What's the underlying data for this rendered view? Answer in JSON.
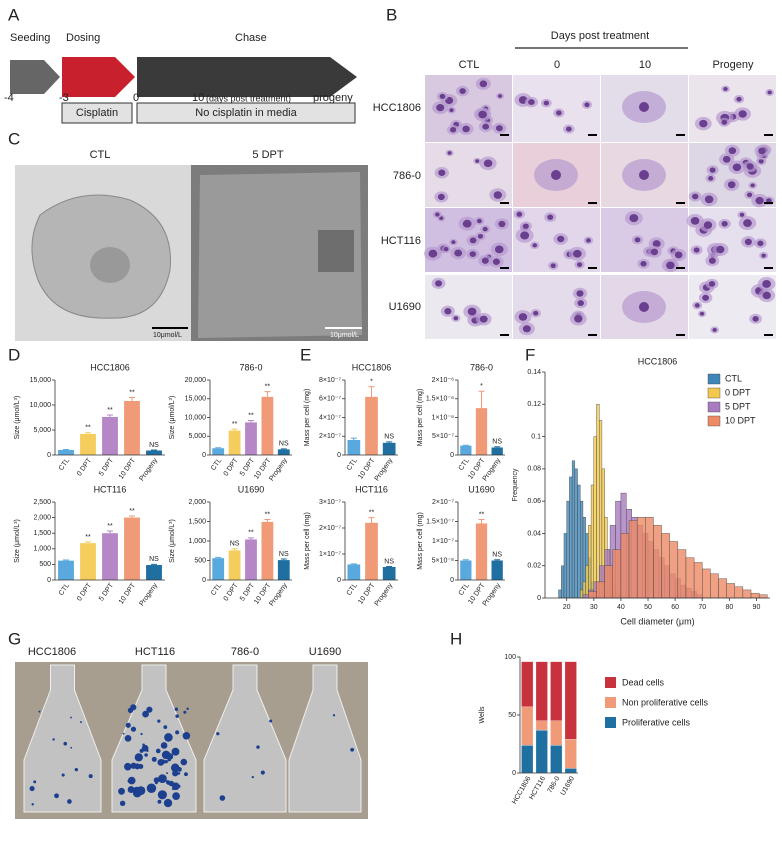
{
  "panels": [
    "A",
    "B",
    "C",
    "D",
    "E",
    "F",
    "G",
    "H"
  ],
  "timeline": {
    "phases": [
      "Seeding",
      "Dosing",
      "Chase"
    ],
    "days": [
      "-4",
      "-3",
      "0",
      "10",
      "progeny"
    ],
    "days_note": "(days post treatment)",
    "boxes": [
      "Cisplatin",
      "No cisplatin in media"
    ]
  },
  "micrographs": {
    "header": "Days post treatment",
    "columns": [
      "CTL",
      "0",
      "10",
      "Progeny"
    ],
    "rows": [
      "HCC1806",
      "786-0",
      "HCT116",
      "U1690"
    ]
  },
  "electron_microscopy": {
    "labels": [
      "CTL",
      "5 DPT"
    ],
    "scale_bar": "10μmol/L"
  },
  "flasks": {
    "labels": [
      "HCC1806",
      "HCT116",
      "786-0",
      "U1690"
    ]
  },
  "chart_data": [
    {
      "type": "bar",
      "title": "HCC1806",
      "ylabel": "Size (μmol/L³)",
      "categories": [
        "CTL",
        "0 DPT",
        "5 DPT",
        "10 DPT",
        "Progeny"
      ],
      "values": [
        1000,
        4200,
        7600,
        10800,
        900
      ],
      "errors": [
        100,
        250,
        400,
        700,
        100
      ],
      "annotations": [
        null,
        "**",
        "**",
        "**",
        "NS"
      ],
      "colors": [
        "#5aa9de",
        "#f5cd5e",
        "#b687c7",
        "#f09a78",
        "#1f6fa0"
      ],
      "ylim": [
        0,
        15000
      ],
      "yticks": [
        0,
        {
          "value": 5000,
          "label": "5,000"
        },
        {
          "value": 10000,
          "label": "10,000"
        },
        {
          "value": 15000,
          "label": "15,000"
        }
      ]
    },
    {
      "type": "bar",
      "title": "786-0",
      "ylabel": "Size (μmol/L³)",
      "categories": [
        "CTL",
        "0 DPT",
        "5 DPT",
        "10 DPT",
        "Progeny"
      ],
      "values": [
        1800,
        6500,
        8700,
        15500,
        1500
      ],
      "errors": [
        150,
        400,
        500,
        1400,
        150
      ],
      "annotations": [
        null,
        "**",
        "**",
        "**",
        "NS"
      ],
      "colors": [
        "#5aa9de",
        "#f5cd5e",
        "#b687c7",
        "#f09a78",
        "#1f6fa0"
      ],
      "ylim": [
        0,
        20000
      ],
      "yticks": [
        0,
        {
          "value": 5000,
          "label": "5,000"
        },
        {
          "value": 10000,
          "label": "10,000"
        },
        {
          "value": 15000,
          "label": "15,000"
        },
        {
          "value": 20000,
          "label": "20,000"
        }
      ]
    },
    {
      "type": "bar",
      "title": "HCT116",
      "ylabel": "Size (μmol/L³)",
      "categories": [
        "CTL",
        "0 DPT",
        "5 DPT",
        "10 DPT",
        "Progeny"
      ],
      "values": [
        620,
        1180,
        1500,
        2000,
        480
      ],
      "errors": [
        20,
        40,
        70,
        50,
        20
      ],
      "annotations": [
        null,
        "**",
        "**",
        "**",
        "NS"
      ],
      "colors": [
        "#5aa9de",
        "#f5cd5e",
        "#b687c7",
        "#f09a78",
        "#1f6fa0"
      ],
      "ylim": [
        0,
        2500
      ],
      "yticks": [
        0,
        500,
        {
          "value": 1000,
          "label": "1,000"
        },
        {
          "value": 1500,
          "label": "1,500"
        },
        {
          "value": 2000,
          "label": "2,000"
        },
        {
          "value": 2500,
          "label": "2,500"
        }
      ]
    },
    {
      "type": "bar",
      "title": "U1690",
      "ylabel": "Size (μmol/L³)",
      "categories": [
        "CTL",
        "0 DPT",
        "5 DPT",
        "10 DPT",
        "Progeny"
      ],
      "values": [
        560,
        760,
        1040,
        1490,
        510
      ],
      "errors": [
        20,
        40,
        40,
        60,
        30
      ],
      "annotations": [
        null,
        "NS",
        "**",
        "**",
        "NS"
      ],
      "colors": [
        "#5aa9de",
        "#f5cd5e",
        "#b687c7",
        "#f09a78",
        "#1f6fa0"
      ],
      "ylim": [
        0,
        2000
      ],
      "yticks": [
        0,
        500,
        {
          "value": 1000,
          "label": "1,000"
        },
        {
          "value": 1500,
          "label": "1,500"
        },
        {
          "value": 2000,
          "label": "2,000"
        }
      ]
    },
    {
      "type": "bar",
      "title": "HCC1806",
      "ylabel": "Mass per cell (mg)",
      "categories": [
        "CTL",
        "10 DPT",
        "Progeny"
      ],
      "values": [
        1.6e-07,
        6.2e-07,
        1.3e-07
      ],
      "errors": [
        2e-08,
        1.1e-07,
        1e-08
      ],
      "annotations": [
        null,
        "*",
        "NS"
      ],
      "colors": [
        "#5aa9de",
        "#f09a78",
        "#1f6fa0"
      ],
      "ylim": [
        0,
        8e-07
      ],
      "yticks": [
        0,
        {
          "value": 2e-07,
          "label": "2×10⁻⁷"
        },
        {
          "value": 4e-07,
          "label": "4×10⁻⁷"
        },
        {
          "value": 6e-07,
          "label": "6×10⁻⁷"
        },
        {
          "value": 8e-07,
          "label": "8×10⁻⁷"
        }
      ]
    },
    {
      "type": "bar",
      "title": "786-0",
      "ylabel": "Mass per cell (mg)",
      "categories": [
        "CTL",
        "10 DPT",
        "Progeny"
      ],
      "values": [
        2.5e-07,
        1.25e-06,
        2e-07
      ],
      "errors": [
        1e-08,
        4.5e-07,
        2e-08
      ],
      "annotations": [
        null,
        "*",
        "NS"
      ],
      "colors": [
        "#5aa9de",
        "#f09a78",
        "#1f6fa0"
      ],
      "ylim": [
        0,
        2e-06
      ],
      "yticks": [
        0,
        {
          "value": 5e-07,
          "label": "5×10⁻⁷"
        },
        {
          "value": 1e-06,
          "label": "1×10⁻⁶"
        },
        {
          "value": 1.5e-06,
          "label": "1.5×10⁻⁶"
        },
        {
          "value": 2e-06,
          "label": "2×10⁻⁶"
        }
      ]
    },
    {
      "type": "bar",
      "title": "HCT116",
      "ylabel": "Mass per cell (mg)",
      "categories": [
        "CTL",
        "10 DPT",
        "Progeny"
      ],
      "values": [
        6e-08,
        2.2e-07,
        5e-08
      ],
      "errors": [
        2e-09,
        2e-08,
        2e-09
      ],
      "annotations": [
        null,
        "**",
        "NS"
      ],
      "colors": [
        "#5aa9de",
        "#f09a78",
        "#1f6fa0"
      ],
      "ylim": [
        0,
        3e-07
      ],
      "yticks": [
        0,
        {
          "value": 1e-07,
          "label": "1×10⁻⁷"
        },
        {
          "value": 2e-07,
          "label": "2×10⁻⁷"
        },
        {
          "value": 3e-07,
          "label": "3×10⁻⁷"
        }
      ]
    },
    {
      "type": "bar",
      "title": "U1690",
      "ylabel": "Mass per cell (mg)",
      "categories": [
        "CTL",
        "10 DPT",
        "Progeny"
      ],
      "values": [
        5e-08,
        1.45e-07,
        5e-08
      ],
      "errors": [
        2e-09,
        1e-08,
        2e-09
      ],
      "annotations": [
        null,
        "**",
        "NS"
      ],
      "colors": [
        "#5aa9de",
        "#f09a78",
        "#1f6fa0"
      ],
      "ylim": [
        0,
        2e-07
      ],
      "yticks": [
        0,
        {
          "value": 5e-08,
          "label": "5×10⁻⁸"
        },
        {
          "value": 1e-07,
          "label": "1×10⁻⁷"
        },
        {
          "value": 1.5e-07,
          "label": "1.5×10⁻⁷"
        },
        {
          "value": 2e-07,
          "label": "2×10⁻⁷"
        }
      ]
    },
    {
      "type": "histogram",
      "title": "HCC1806",
      "xlabel": "Cell diameter (μm)",
      "ylabel": "Frequency",
      "xlim": [
        12,
        95
      ],
      "xticks": [
        20,
        30,
        40,
        50,
        60,
        70,
        80,
        90
      ],
      "ylim": [
        0,
        0.14
      ],
      "yticks": [
        0,
        0.02,
        0.04,
        0.06,
        0.08,
        0.1,
        0.12,
        0.14
      ],
      "legend": "upper right",
      "series": [
        {
          "name": "CTL",
          "color": "#3f86b8",
          "bins": [
            17,
            18,
            19,
            20,
            21,
            22,
            23,
            24,
            25,
            26,
            27,
            28,
            29,
            30,
            31
          ],
          "values": [
            0.005,
            0.02,
            0.04,
            0.06,
            0.075,
            0.085,
            0.08,
            0.07,
            0.06,
            0.05,
            0.04,
            0.025,
            0.01,
            0.004
          ]
        },
        {
          "name": "0 DPT",
          "color": "#f2c94c",
          "bins": [
            25,
            26,
            27,
            28,
            29,
            30,
            31,
            32,
            33,
            34,
            35,
            36,
            37,
            38,
            39,
            40
          ],
          "values": [
            0.005,
            0.01,
            0.02,
            0.045,
            0.07,
            0.1,
            0.12,
            0.11,
            0.08,
            0.05,
            0.03,
            0.015,
            0.008,
            0.004,
            0.002
          ]
        },
        {
          "name": "5 DPT",
          "color": "#a77bbf",
          "bins": [
            26,
            28,
            30,
            32,
            34,
            36,
            38,
            40,
            42,
            44,
            46,
            48,
            50,
            52,
            54,
            56,
            58,
            60,
            62,
            64,
            66,
            68,
            70
          ],
          "values": [
            0.002,
            0.005,
            0.01,
            0.02,
            0.03,
            0.045,
            0.06,
            0.065,
            0.055,
            0.05,
            0.045,
            0.04,
            0.035,
            0.03,
            0.025,
            0.02,
            0.015,
            0.012,
            0.008,
            0.006,
            0.004,
            0.002
          ]
        },
        {
          "name": "10 DPT",
          "color": "#ee8a64",
          "bins": [
            28,
            31,
            34,
            37,
            40,
            43,
            46,
            49,
            52,
            55,
            58,
            61,
            64,
            67,
            70,
            73,
            76,
            79,
            82,
            85,
            88,
            91,
            94
          ],
          "values": [
            0.004,
            0.01,
            0.02,
            0.03,
            0.04,
            0.048,
            0.05,
            0.05,
            0.045,
            0.04,
            0.035,
            0.03,
            0.025,
            0.022,
            0.018,
            0.015,
            0.012,
            0.009,
            0.007,
            0.005,
            0.003,
            0.002
          ]
        }
      ]
    },
    {
      "type": "stacked_bar",
      "ylabel": "Wells",
      "categories": [
        "HCC1806",
        "HCT116",
        "786-0",
        "U1690"
      ],
      "ylim": [
        0,
        100
      ],
      "yticks": [
        0,
        50,
        100
      ],
      "series": [
        {
          "name": "Dead cells",
          "color": "#c8323c",
          "values": [
            39,
            51,
            51,
            67
          ]
        },
        {
          "name": "Non proliferative cells",
          "color": "#f09a78",
          "values": [
            33,
            8,
            21,
            25
          ]
        },
        {
          "name": "Proliferative cells",
          "color": "#1f6fa0",
          "values": [
            24,
            37,
            24,
            4
          ]
        }
      ]
    }
  ]
}
